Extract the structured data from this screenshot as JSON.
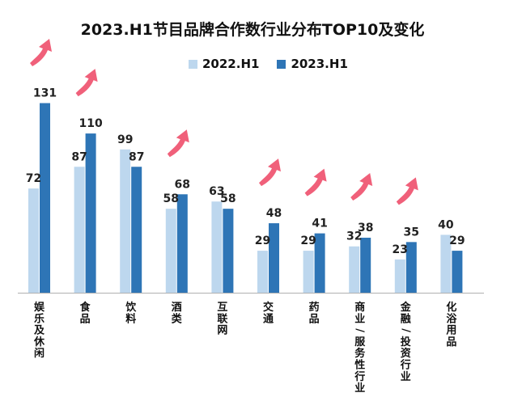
{
  "chart_data": {
    "type": "bar",
    "title": "2023.H1节目品牌合作数行业分布TOP10及变化",
    "categories": [
      "娱乐及休闲",
      "食品",
      "饮料",
      "酒类",
      "互联网",
      "交通",
      "药品",
      "商业/服务性行业",
      "金融/投资行业",
      "化浴用品"
    ],
    "series": [
      {
        "name": "2022.H1",
        "color": "#bdd7ee",
        "values": [
          72,
          87,
          99,
          58,
          63,
          29,
          29,
          32,
          23,
          40
        ]
      },
      {
        "name": "2023.H1",
        "color": "#2e75b6",
        "values": [
          131,
          110,
          87,
          68,
          58,
          48,
          41,
          38,
          35,
          29
        ]
      }
    ],
    "increase_arrows": [
      true,
      true,
      false,
      true,
      false,
      true,
      true,
      true,
      true,
      false
    ],
    "arrow_color": "#f0607a",
    "axis_color": "#b0b0b0",
    "legend_position": "top"
  }
}
